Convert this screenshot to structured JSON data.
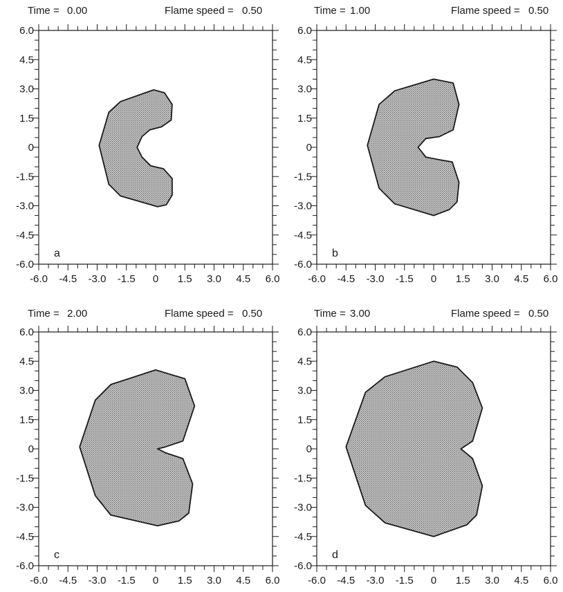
{
  "chart_data": [
    {
      "type": "area",
      "panel_label": "a",
      "header": {
        "time_label": "Time =",
        "time_value": "0.00",
        "speed_label": "Flame speed =",
        "speed_value": "0.50"
      },
      "xlim": [
        -6.0,
        6.0
      ],
      "ylim": [
        -6.0,
        6.0
      ],
      "xticklabels": [
        "-6.0",
        "-4.5",
        "-3.0",
        "-1.5",
        "0",
        "1.5",
        "3.0",
        "4.5",
        "6.0"
      ],
      "yticklabels": [
        "6.0",
        "4.5",
        "3.0",
        "1.5",
        "0",
        "-1.5",
        "-3.0",
        "-4.5",
        "-6.0"
      ],
      "grid": false,
      "fill": "#b5b5b5",
      "outline": [
        [
          -2.9,
          0.1
        ],
        [
          -2.4,
          1.8
        ],
        [
          -1.8,
          2.35
        ],
        [
          -0.1,
          2.95
        ],
        [
          0.45,
          2.8
        ],
        [
          0.85,
          2.2
        ],
        [
          0.8,
          1.4
        ],
        [
          0.3,
          1.05
        ],
        [
          -0.3,
          0.9
        ],
        [
          -0.7,
          0.55
        ],
        [
          -0.95,
          0
        ],
        [
          -0.7,
          -0.5
        ],
        [
          -0.25,
          -0.95
        ],
        [
          0.4,
          -1.1
        ],
        [
          0.85,
          -1.6
        ],
        [
          0.85,
          -2.45
        ],
        [
          0.55,
          -2.95
        ],
        [
          0.1,
          -3.05
        ],
        [
          -1.8,
          -2.5
        ],
        [
          -2.4,
          -1.9
        ]
      ]
    },
    {
      "type": "area",
      "panel_label": "b",
      "header": {
        "time_label": "Time =",
        "time_value": "1.00",
        "speed_label": "Flame speed =",
        "speed_value": "0.50"
      },
      "xlim": [
        -6.0,
        6.0
      ],
      "ylim": [
        -6.0,
        6.0
      ],
      "xticklabels": [
        "-6.0",
        "-4.5",
        "-3.0",
        "-1.5",
        "0",
        "1.5",
        "3.0",
        "4.5",
        "6.0"
      ],
      "yticklabels": [
        "6.0",
        "4.5",
        "3.0",
        "1.5",
        "0",
        "-1.5",
        "-3.0",
        "-4.5",
        "-6.0"
      ],
      "grid": false,
      "fill": "#b5b5b5",
      "outline": [
        [
          -3.4,
          0.1
        ],
        [
          -2.8,
          2.2
        ],
        [
          -2.0,
          2.9
        ],
        [
          0,
          3.5
        ],
        [
          1.0,
          3.3
        ],
        [
          1.3,
          2.2
        ],
        [
          1.0,
          0.9
        ],
        [
          0.3,
          0.55
        ],
        [
          -0.4,
          0.45
        ],
        [
          -0.8,
          0
        ],
        [
          -0.4,
          -0.5
        ],
        [
          0.35,
          -0.65
        ],
        [
          0.95,
          -0.75
        ],
        [
          1.3,
          -1.8
        ],
        [
          1.2,
          -2.8
        ],
        [
          0.8,
          -3.2
        ],
        [
          0,
          -3.5
        ],
        [
          -2.0,
          -2.9
        ],
        [
          -2.8,
          -2.1
        ]
      ]
    },
    {
      "type": "area",
      "panel_label": "c",
      "header": {
        "time_label": "Time =",
        "time_value": "2.00",
        "speed_label": "Flame speed =",
        "speed_value": "0.50"
      },
      "xlim": [
        -6.0,
        6.0
      ],
      "ylim": [
        -6.0,
        6.0
      ],
      "xticklabels": [
        "-6.0",
        "-4.5",
        "-3.0",
        "-1.5",
        "0",
        "1.5",
        "3.0",
        "4.5",
        "6.0"
      ],
      "yticklabels": [
        "6.0",
        "4.5",
        "3.0",
        "1.5",
        "0",
        "-1.5",
        "-3.0",
        "-4.5",
        "-6.0"
      ],
      "grid": false,
      "fill": "#b5b5b5",
      "outline": [
        [
          -3.9,
          0.1
        ],
        [
          -3.1,
          2.5
        ],
        [
          -2.3,
          3.3
        ],
        [
          0,
          4.05
        ],
        [
          1.5,
          3.6
        ],
        [
          2.0,
          2.2
        ],
        [
          1.4,
          0.4
        ],
        [
          0.5,
          0.1
        ],
        [
          0.1,
          0.0
        ],
        [
          0.5,
          -0.2
        ],
        [
          1.4,
          -0.5
        ],
        [
          1.9,
          -1.8
        ],
        [
          1.7,
          -3.3
        ],
        [
          1.2,
          -3.7
        ],
        [
          0.1,
          -3.95
        ],
        [
          -2.3,
          -3.4
        ],
        [
          -3.1,
          -2.4
        ]
      ]
    },
    {
      "type": "area",
      "panel_label": "d",
      "header": {
        "time_label": "Time =",
        "time_value": "3.00",
        "speed_label": "Flame speed =",
        "speed_value": "0.50"
      },
      "xlim": [
        -6.0,
        6.0
      ],
      "ylim": [
        -6.0,
        6.0
      ],
      "xticklabels": [
        "-6.0",
        "-4.5",
        "-3.0",
        "-1.5",
        "0",
        "1.5",
        "3.0",
        "4.5",
        "6.0"
      ],
      "yticklabels": [
        "6.0",
        "4.5",
        "3.0",
        "1.5",
        "0",
        "-1.5",
        "-3.0",
        "-4.5",
        "-6.0"
      ],
      "grid": false,
      "fill": "#b5b5b5",
      "outline": [
        [
          -4.5,
          0.1
        ],
        [
          -3.5,
          2.9
        ],
        [
          -2.5,
          3.7
        ],
        [
          0,
          4.5
        ],
        [
          1.2,
          4.2
        ],
        [
          2.0,
          3.4
        ],
        [
          2.5,
          2.1
        ],
        [
          2.0,
          0.4
        ],
        [
          1.4,
          0
        ],
        [
          2.0,
          -0.5
        ],
        [
          2.5,
          -1.9
        ],
        [
          2.2,
          -3.4
        ],
        [
          1.7,
          -3.9
        ],
        [
          0,
          -4.5
        ],
        [
          -2.5,
          -3.8
        ],
        [
          -3.5,
          -2.9
        ]
      ]
    }
  ]
}
